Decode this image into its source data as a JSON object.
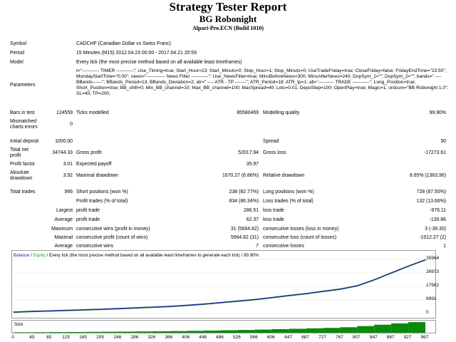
{
  "header": {
    "title": "Strategy Tester Report",
    "subtitle": "BG Robonight",
    "server": "Alpari-Pro.ECN (Build 1010)"
  },
  "info": {
    "symbol_label": "Symbol",
    "symbol_value": "CADCHF (Canadian Dollar vs Swiss Franc)",
    "period_label": "Period",
    "period_value": "15 Minutes (M15) 2012.04.23 00:00 - 2017.04.21 20:59",
    "model_label": "Model",
    "model_value": "Every tick (the most precise method based on all available least timeframes)",
    "parameters_label": "Parameters",
    "parameters_value": "t=\"----------- TIMER -----------\"; Use_Timing=true; Start_Hour=23; Start_Minuts=0; Stop_Hour=1; Stop_Minuts=0; UseTradeFriday=true; CloseFriday=false; FridayEndTime=\"23:50\"; MondayStartTime=\"0:00\"; news=\"------------ News Filter -----------\"; Use_NewsFilter=true; MinsBeforeNews=300; MinsAfterNews=240; DopSym_1=\"\"; DopSym_2=\"\"; bands=\" ---- BBands------\"; BBands_Period=13; BBands_Deviation=2; atr=\" ---- ATR - TP -------\"; ATR_Period=18; ATR_tp=1; all=\"---------- TRADE -----------\"; Long_Position=true; Short_Position=true; BB_shift=0; Min_BB_channel=10; Max_BB_channel=100; MaxSpread=40; Lots=0.01; DepoStep=100; OpenPlay=true; Magic=1; ordcom=\"BB Robonight 1.0\"; SL=40; TP=200;"
  },
  "stats": {
    "bars_label": "Bars in test",
    "bars_value": "124559",
    "ticks_label": "Ticks modelled",
    "ticks_value": "85580469",
    "quality_label": "Modelling quality",
    "quality_value": "99.90%",
    "mismatch_label_1": "Mismatched",
    "mismatch_label_2": "charts errors",
    "mismatch_value": "0",
    "deposit_label": "Initial deposit",
    "deposit_value": "1000.00",
    "spread_label": "Spread",
    "spread_value": "30",
    "netprofit_label_1": "Total net",
    "netprofit_label_2": "profit",
    "netprofit_value": "34744.33",
    "grossprofit_label": "Gross profit",
    "grossprofit_value": "52017.94",
    "grossloss_label": "Gross loss",
    "grossloss_value": "-17273.61",
    "pf_label": "Profit factor",
    "pf_value": "3.01",
    "payoff_label": "Expected payoff",
    "payoff_value": "35.97",
    "absdd_label_1": "Absolute",
    "absdd_label_2": "drawdown",
    "absdd_value": "3.92",
    "maxdd_label": "Maximal drawdown",
    "maxdd_value": "1670.27 (6.86%)",
    "reldd_label": "Relative drawdown",
    "reldd_value": "8.65% (1363.96)",
    "trades_label": "Total trades",
    "trades_value": "966",
    "short_label": "Short positions (won %)",
    "short_value": "238 (82.77%)",
    "long_label": "Long positions (won %)",
    "long_value": "728 (87.50%)",
    "profit_trades_label": "Profit trades (% of total)",
    "profit_trades_value": "834 (86.34%)",
    "loss_trades_label": "Loss trades (% of total)",
    "loss_trades_value": "132 (13.66%)",
    "largest_label": "Largest",
    "largest_profit_label": "profit trade",
    "largest_profit_value": "286.51",
    "largest_loss_label": "loss trade",
    "largest_loss_value": "-976.11",
    "average_label": "Average",
    "avg_profit_label": "profit trade",
    "avg_profit_value": "62.37",
    "avg_loss_label": "loss trade",
    "avg_loss_value": "-130.86",
    "maximum_label": "Maximum",
    "max_wins_label": "consecutive wins (profit in money)",
    "max_wins_value": "31 (5664.82)",
    "max_losses_label": "consecutive losses (loss in money)",
    "max_losses_value": "3 (-39.30)",
    "maximal_label": "Maximal",
    "maximal_profit_label": "consecutive profit (count of wins)",
    "maximal_profit_value": "5664.82 (31)",
    "maximal_loss_label": "consecutive loss (count of losses)",
    "maximal_loss_value": "-1012.27 (2)",
    "average2_label": "Average",
    "avg_wins_label": "consecutive wins",
    "avg_wins_value": "7",
    "avg_losses_label": "consecutive losses",
    "avg_losses_value": "1"
  },
  "graph": {
    "legend_balance": "Balance",
    "legend_sep": "/",
    "legend_equity": "Equity",
    "legend_rest": "/ Every tick (the most precise method based on all available least timeframes to generate each tick) / 99.90%",
    "size_label": "Size",
    "colors": {
      "balance": "#1c2a9c",
      "equity": "#2aa02a",
      "size": "#0b8a0b"
    }
  },
  "chart_data": {
    "type": "line",
    "y_ticks": [
      "35964",
      "26973",
      "17982",
      "8991",
      "0"
    ],
    "x_ticks": [
      "0",
      "45",
      "85",
      "125",
      "165",
      "205",
      "246",
      "286",
      "326",
      "366",
      "406",
      "446",
      "486",
      "526",
      "566",
      "606",
      "647",
      "687",
      "727",
      "767",
      "807",
      "847",
      "887",
      "927",
      "967"
    ],
    "ylim": [
      0,
      35964
    ],
    "xlim": [
      0,
      967
    ],
    "series": [
      {
        "name": "Balance",
        "x": [
          0,
          45,
          85,
          125,
          165,
          205,
          246,
          286,
          326,
          366,
          406,
          446,
          486,
          526,
          566,
          606,
          647,
          687,
          727,
          767,
          807,
          847,
          887,
          927,
          967
        ],
        "values": [
          1000,
          1500,
          1800,
          2200,
          2500,
          2900,
          3300,
          3800,
          4300,
          4800,
          5500,
          6300,
          7300,
          8300,
          9300,
          10600,
          12000,
          13300,
          14800,
          16300,
          18500,
          22500,
          27000,
          31500,
          35744
        ]
      }
    ]
  }
}
